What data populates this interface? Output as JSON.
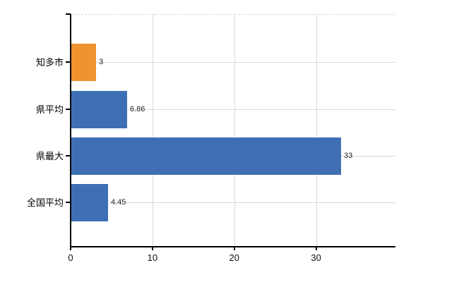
{
  "chart_data": {
    "type": "bar",
    "orientation": "horizontal",
    "title": "",
    "xlabel": "",
    "ylabel": "",
    "categories": [
      "知多市",
      "県平均",
      "県最大",
      "全国平均"
    ],
    "values": [
      3,
      6.86,
      33,
      4.45
    ],
    "value_labels": [
      "3",
      "6.86",
      "33",
      "4.45"
    ],
    "bar_colors": [
      "#F0922E",
      "#3E6FB4",
      "#3E6FB4",
      "#3E6FB4"
    ],
    "xlim": [
      0,
      39.7
    ],
    "x_ticks": [
      0,
      10,
      20,
      30
    ],
    "x_tick_labels": [
      "0",
      "10",
      "20",
      "30"
    ],
    "grid": true,
    "legend_position": "none"
  },
  "colors": {
    "bar_blue": "#3E6FB4",
    "bar_orange": "#F0922E",
    "gridline": "#d9d9d9",
    "top_border": "#d2d6d2",
    "axis": "#000000",
    "label_text": "#000000",
    "value_text": "#1f1f1f"
  }
}
